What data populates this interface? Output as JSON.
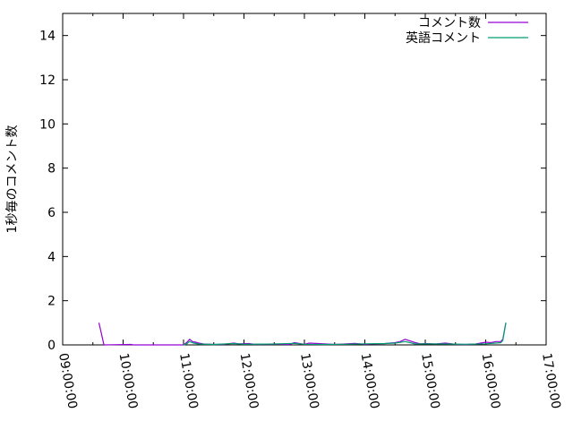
{
  "chart_data": {
    "type": "line",
    "title": "",
    "xlabel": "",
    "ylabel": "1秒毎のコメント数",
    "xlim": [
      "09:00:00",
      "17:00:00"
    ],
    "ylim": [
      0,
      15
    ],
    "x_ticks": [
      "09:00:00",
      "10:00:00",
      "11:00:00",
      "12:00:00",
      "13:00:00",
      "14:00:00",
      "15:00:00",
      "16:00:00",
      "17:00:00"
    ],
    "y_ticks": [
      "0",
      "2",
      "4",
      "6",
      "8",
      "10",
      "12",
      "14"
    ],
    "grid": false,
    "legend_position": "top-right",
    "series": [
      {
        "name": "コメント数",
        "color": "#9400d3",
        "x": [
          "09:36",
          "09:41",
          "10:08",
          "10:10",
          "11:00",
          "11:03",
          "11:06",
          "11:09",
          "11:12",
          "11:15",
          "11:20",
          "11:30",
          "11:40",
          "11:50",
          "11:55",
          "12:05",
          "12:10",
          "12:30",
          "12:45",
          "12:50",
          "13:00",
          "13:05",
          "13:30",
          "13:40",
          "13:50",
          "14:00",
          "14:10",
          "14:20",
          "14:30",
          "14:35",
          "14:40",
          "14:45",
          "14:50",
          "14:55",
          "15:00",
          "15:10",
          "15:20",
          "15:30",
          "15:40",
          "15:50",
          "16:00",
          "16:05",
          "16:10",
          "16:15",
          "16:17",
          "16:20"
        ],
        "values": [
          1,
          0,
          0.02,
          0,
          0,
          0.1,
          0.25,
          0.15,
          0.12,
          0.08,
          0.04,
          0.02,
          0.03,
          0.08,
          0.05,
          0.06,
          0.03,
          0.04,
          0.02,
          0.1,
          0.03,
          0.08,
          0.02,
          0.04,
          0.07,
          0.03,
          0.05,
          0.06,
          0.1,
          0.15,
          0.25,
          0.18,
          0.1,
          0.05,
          0.06,
          0.04,
          0.08,
          0.03,
          0.02,
          0.04,
          0.12,
          0.1,
          0.15,
          0.15,
          0.25,
          1
        ]
      },
      {
        "name": "英語コメント",
        "color": "#009e73",
        "x": [
          "11:00",
          "11:03",
          "11:06",
          "11:10",
          "11:15",
          "11:30",
          "11:50",
          "12:00",
          "12:30",
          "12:50",
          "13:00",
          "13:20",
          "13:40",
          "14:00",
          "14:20",
          "14:30",
          "14:40",
          "14:45",
          "14:50",
          "15:00",
          "15:20",
          "15:40",
          "16:00",
          "16:10",
          "16:15",
          "16:17",
          "16:20"
        ],
        "values": [
          0,
          0.05,
          0.15,
          0.08,
          0.04,
          0.02,
          0.06,
          0.03,
          0.04,
          0.07,
          0.03,
          0.02,
          0.03,
          0.05,
          0.06,
          0.08,
          0.15,
          0.1,
          0.04,
          0.05,
          0.04,
          0.03,
          0.05,
          0.08,
          0.1,
          0.2,
          1
        ]
      }
    ]
  }
}
